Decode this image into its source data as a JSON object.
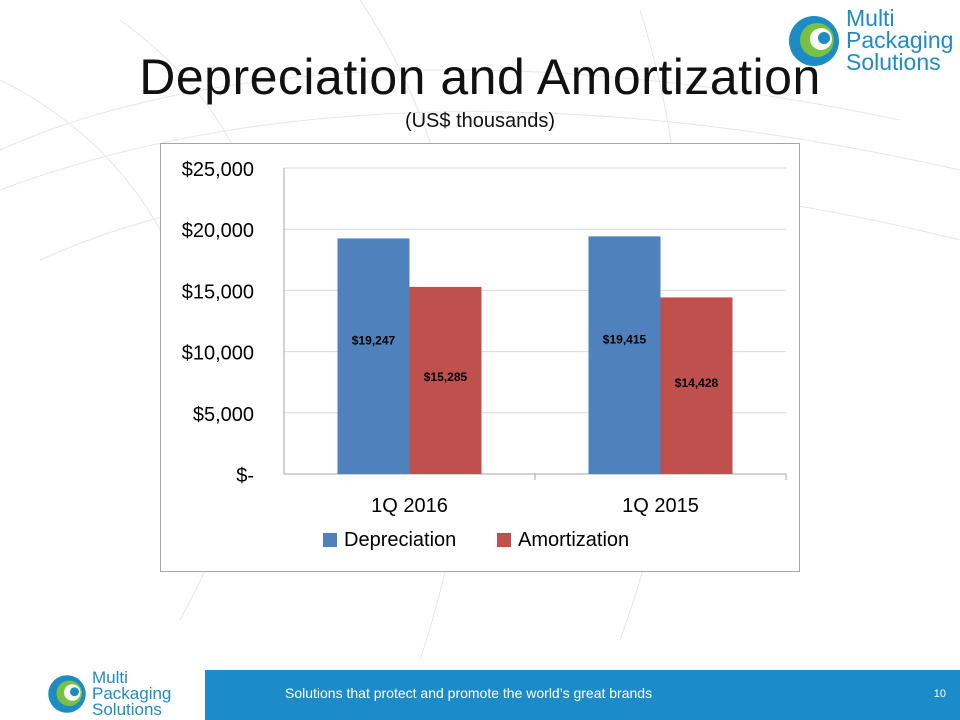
{
  "slide": {
    "title": "Depreciation and Amortization",
    "subtitle": "(US$ thousands)",
    "footer_text": "Solutions that protect and promote the world’s great brands",
    "page_number": "10"
  },
  "logo": {
    "line1": "Multi",
    "line2": "Packaging",
    "line3": "Solutions"
  },
  "colors": {
    "depreciation": "#4f81bd",
    "amortization": "#c0504d",
    "footer": "#1b8cc8",
    "logo_teal": "#1d8cc4",
    "logo_green": "#7ac143"
  },
  "chart_data": {
    "type": "bar",
    "categories": [
      "1Q 2016",
      "1Q 2015"
    ],
    "series": [
      {
        "name": "Depreciation",
        "values": [
          19247,
          19415
        ],
        "labels": [
          "$19,247",
          "$19,415"
        ]
      },
      {
        "name": "Amortization",
        "values": [
          15285,
          14428
        ],
        "labels": [
          "$15,285",
          "$14,428"
        ]
      }
    ],
    "ylim": [
      0,
      25000
    ],
    "yticks": [
      0,
      5000,
      10000,
      15000,
      20000,
      25000
    ],
    "ytick_labels": [
      "$-",
      "$5,000",
      "$10,000",
      "$15,000",
      "$20,000",
      "$25,000"
    ],
    "grid": true,
    "legend_position": "bottom"
  }
}
